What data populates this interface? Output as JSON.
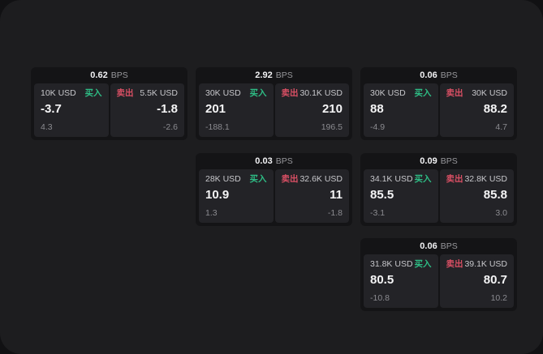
{
  "labels": {
    "bps": "BPS",
    "buy": "买入",
    "sell": "卖出"
  },
  "colors": {
    "background_outer": "#111113",
    "surface": "#1d1d1f",
    "card": "#141416",
    "panel": "#232327",
    "buy_green": "#2ebd85",
    "sell_red": "#d94f64",
    "value_white": "#f5f5f6",
    "label_gray": "#c7c7cb",
    "dim_gray": "#8b8b90"
  },
  "cards": [
    {
      "bps": "0.62",
      "buy": {
        "amount": "10K USD",
        "price": "-3.7",
        "sub": "4.3"
      },
      "sell": {
        "amount": "5.5K USD",
        "price": "-1.8",
        "sub": "-2.6"
      }
    },
    {
      "bps": "2.92",
      "buy": {
        "amount": "30K USD",
        "price": "201",
        "sub": "-188.1"
      },
      "sell": {
        "amount": "30.1K USD",
        "price": "210",
        "sub": "196.5"
      }
    },
    {
      "bps": "0.06",
      "buy": {
        "amount": "30K USD",
        "price": "88",
        "sub": "-4.9"
      },
      "sell": {
        "amount": "30K USD",
        "price": "88.2",
        "sub": "4.7"
      }
    },
    {
      "bps": "0.03",
      "buy": {
        "amount": "28K USD",
        "price": "10.9",
        "sub": "1.3"
      },
      "sell": {
        "amount": "32.6K USD",
        "price": "11",
        "sub": "-1.8"
      }
    },
    {
      "bps": "0.09",
      "buy": {
        "amount": "34.1K USD",
        "price": "85.5",
        "sub": "-3.1"
      },
      "sell": {
        "amount": "32.8K USD",
        "price": "85.8",
        "sub": "3.0"
      }
    },
    {
      "bps": "0.06",
      "buy": {
        "amount": "31.8K USD",
        "price": "80.5",
        "sub": "-10.8"
      },
      "sell": {
        "amount": "39.1K USD",
        "price": "80.7",
        "sub": "10.2"
      }
    }
  ]
}
